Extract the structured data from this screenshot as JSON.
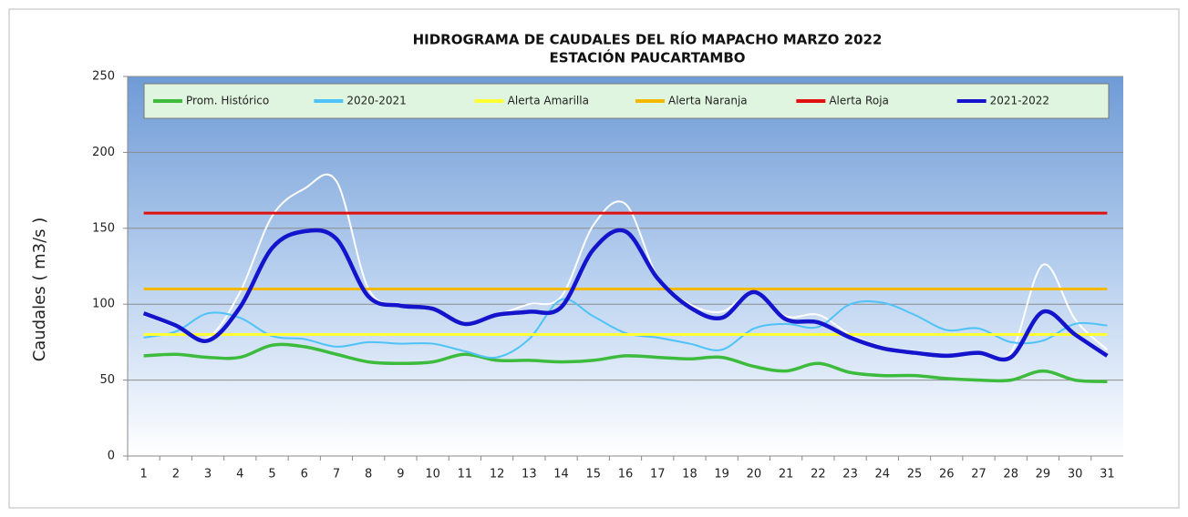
{
  "chart_data": {
    "type": "line",
    "title": "HIDROGRAMA DE CAUDALES DEL RÍO MAPACHO MARZO 2022",
    "subtitle": "ESTACIÓN PAUCARTAMBO",
    "y_label": "Caudales ( m3/s )",
    "categories": [
      "1",
      "2",
      "3",
      "4",
      "5",
      "6",
      "7",
      "8",
      "9",
      "10",
      "11",
      "12",
      "13",
      "14",
      "15",
      "16",
      "17",
      "18",
      "19",
      "20",
      "21",
      "22",
      "23",
      "24",
      "25",
      "26",
      "27",
      "28",
      "29",
      "30",
      "31"
    ],
    "ylim": [
      0,
      250
    ],
    "yticks": [
      0,
      50,
      100,
      150,
      200,
      250
    ],
    "grid": true,
    "series": [
      {
        "color": "#ffffff",
        "width": 2,
        "values": [
          93,
          85,
          78,
          108,
          158,
          176,
          181,
          110,
          100,
          97,
          88,
          93,
          100,
          105,
          152,
          166,
          118,
          100,
          95,
          108,
          92,
          93,
          80,
          72,
          69,
          66,
          68,
          68,
          126,
          90,
          70
        ]
      },
      {
        "name": "Prom. Histórico",
        "color": "#3dbb3d",
        "width": 3.5,
        "values": [
          66,
          67,
          65,
          65,
          73,
          72,
          67,
          62,
          61,
          62,
          67,
          63,
          63,
          62,
          63,
          66,
          65,
          64,
          65,
          59,
          56,
          61,
          55,
          53,
          53,
          51,
          50,
          50,
          56,
          50,
          49
        ]
      },
      {
        "name": "2020-2021",
        "color": "#4fc3f7",
        "width": 2,
        "values": [
          78,
          82,
          94,
          91,
          79,
          77,
          72,
          75,
          74,
          74,
          69,
          65,
          77,
          103,
          92,
          81,
          78,
          74,
          70,
          84,
          87,
          85,
          100,
          101,
          93,
          83,
          84,
          75,
          76,
          87,
          86
        ]
      },
      {
        "name": "Alerta Amarilla",
        "color": "#ffff33",
        "width": 3,
        "values": [
          80,
          80,
          80,
          80,
          80,
          80,
          80,
          80,
          80,
          80,
          80,
          80,
          80,
          80,
          80,
          80,
          80,
          80,
          80,
          80,
          80,
          80,
          80,
          80,
          80,
          80,
          80,
          80,
          80,
          80,
          80
        ]
      },
      {
        "name": "Alerta Naranja",
        "color": "#f5b800",
        "width": 3,
        "values": [
          110,
          110,
          110,
          110,
          110,
          110,
          110,
          110,
          110,
          110,
          110,
          110,
          110,
          110,
          110,
          110,
          110,
          110,
          110,
          110,
          110,
          110,
          110,
          110,
          110,
          110,
          110,
          110,
          110,
          110,
          110
        ]
      },
      {
        "name": "Alerta Roja",
        "color": "#e01010",
        "width": 3,
        "values": [
          160,
          160,
          160,
          160,
          160,
          160,
          160,
          160,
          160,
          160,
          160,
          160,
          160,
          160,
          160,
          160,
          160,
          160,
          160,
          160,
          160,
          160,
          160,
          160,
          160,
          160,
          160,
          160,
          160,
          160,
          160
        ]
      },
      {
        "name": "2021-2022",
        "color": "#1414cc",
        "width": 4.5,
        "values": [
          94,
          86,
          76,
          98,
          137,
          148,
          143,
          105,
          99,
          97,
          87,
          93,
          95,
          98,
          136,
          148,
          117,
          98,
          91,
          108,
          90,
          88,
          78,
          71,
          68,
          66,
          68,
          65,
          95,
          80,
          66
        ]
      }
    ]
  }
}
